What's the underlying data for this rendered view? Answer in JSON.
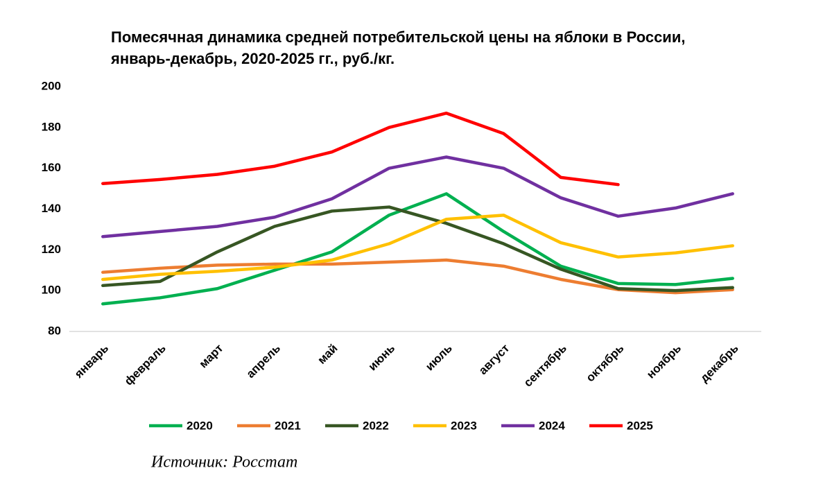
{
  "chart_data": {
    "type": "line",
    "title": [
      "Помесячная динамика средней потребительской цены на яблоки в России,",
      "январь-декабрь, 2020-2025 гг., руб./кг."
    ],
    "categories": [
      "январь",
      "февраль",
      "март",
      "апрель",
      "май",
      "июнь",
      "июль",
      "август",
      "сентябрь",
      "октябрь",
      "ноябрь",
      "декабрь"
    ],
    "series": [
      {
        "name": "2020",
        "color": "#00b050",
        "values": [
          93.5,
          96.5,
          101,
          110,
          119,
          137,
          147.5,
          129,
          112,
          103.5,
          103,
          106
        ]
      },
      {
        "name": "2021",
        "color": "#ed7d31",
        "values": [
          109,
          111,
          112.5,
          113,
          113,
          114,
          115,
          112,
          105.5,
          100.5,
          99,
          100.5
        ]
      },
      {
        "name": "2022",
        "color": "#375623",
        "values": [
          102.5,
          104.5,
          119,
          131.5,
          139,
          141,
          133,
          123,
          110.5,
          101,
          100,
          101.5
        ]
      },
      {
        "name": "2023",
        "color": "#ffc000",
        "values": [
          105.5,
          108,
          109.5,
          111.5,
          115,
          123,
          135,
          137,
          123.5,
          116.5,
          118.5,
          122
        ]
      },
      {
        "name": "2024",
        "color": "#7030a0",
        "values": [
          126.5,
          129,
          131.5,
          136,
          145,
          160,
          165.5,
          160,
          145.5,
          136.5,
          140.5,
          147.5
        ]
      },
      {
        "name": "2025",
        "color": "#ff0000",
        "values": [
          152.5,
          154.5,
          157,
          161,
          168,
          180,
          187,
          177,
          155.5,
          152,
          null,
          null
        ]
      }
    ],
    "ylim": [
      80,
      200
    ],
    "yticks": [
      80,
      100,
      120,
      140,
      160,
      180,
      200
    ],
    "grid": false,
    "legend": "bottom",
    "source": "Источник: Росстат"
  }
}
